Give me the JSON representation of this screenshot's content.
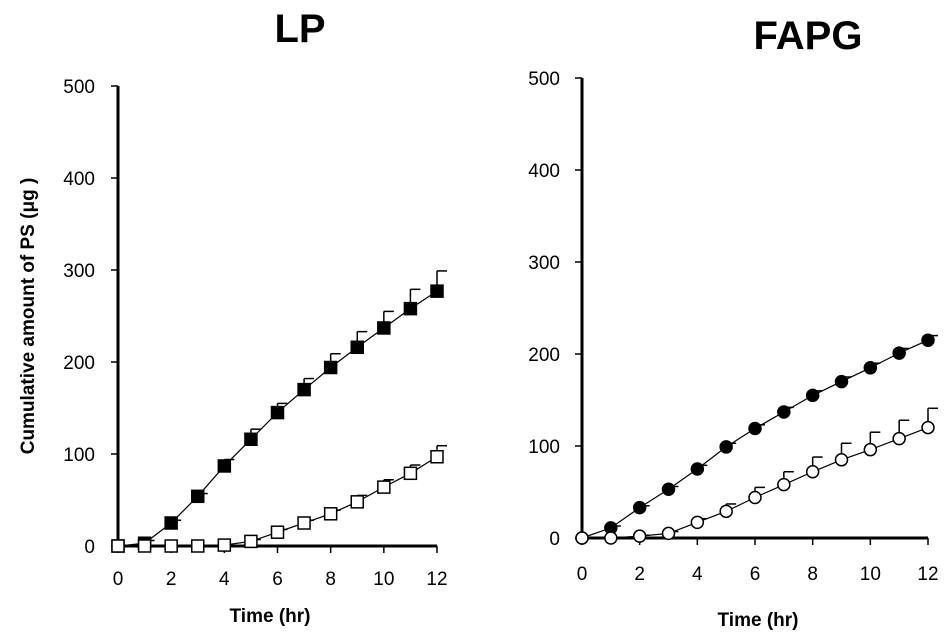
{
  "chart_data": [
    {
      "type": "line",
      "title": "LP",
      "xlabel": "Time (hr)",
      "ylabel": "Cumulative amount of PS (μg )",
      "xlim": [
        0,
        12
      ],
      "ylim": [
        0,
        500
      ],
      "xticks": [
        "0",
        "2",
        "4",
        "6",
        "8",
        "10",
        "12"
      ],
      "yticks": [
        "0",
        "100",
        "200",
        "300",
        "400",
        "500"
      ],
      "x": [
        0,
        1,
        2,
        3,
        4,
        5,
        6,
        7,
        8,
        9,
        10,
        11,
        12
      ],
      "series": [
        {
          "marker": "filled-square",
          "values": [
            0,
            3,
            25,
            54,
            87,
            116,
            145,
            170,
            194,
            216,
            237,
            258,
            277
          ],
          "error": [
            0,
            3,
            3,
            3,
            7,
            11,
            10,
            12,
            15,
            17,
            18,
            21,
            22
          ]
        },
        {
          "marker": "open-square",
          "values": [
            0,
            0,
            0,
            0,
            1,
            5,
            15,
            25,
            35,
            48,
            64,
            79,
            97
          ],
          "error": [
            0,
            0,
            0,
            0,
            0,
            2,
            3,
            3,
            4,
            7,
            8,
            9,
            12
          ]
        }
      ]
    },
    {
      "type": "line",
      "title": "FAPG",
      "xlabel": "Time (hr)",
      "ylabel": "",
      "xlim": [
        0,
        12
      ],
      "ylim": [
        0,
        500
      ],
      "xticks": [
        "0",
        "2",
        "4",
        "6",
        "8",
        "10",
        "12"
      ],
      "yticks": [
        "0",
        "100",
        "200",
        "300",
        "400",
        "500"
      ],
      "x": [
        0,
        1,
        2,
        3,
        4,
        5,
        6,
        7,
        8,
        9,
        10,
        11,
        12
      ],
      "series": [
        {
          "marker": "filled-circle",
          "values": [
            0,
            11,
            33,
            53,
            75,
            99,
            119,
            137,
            155,
            170,
            185,
            201,
            215
          ],
          "error": [
            0,
            2,
            2,
            3,
            4,
            4,
            4,
            5,
            5,
            5,
            5,
            5,
            5
          ]
        },
        {
          "marker": "open-circle",
          "values": [
            0,
            0,
            2,
            5,
            17,
            29,
            44,
            58,
            72,
            85,
            96,
            108,
            120
          ],
          "error": [
            0,
            0,
            1,
            2,
            4,
            8,
            11,
            14,
            16,
            18,
            19,
            20,
            21
          ]
        }
      ]
    }
  ]
}
